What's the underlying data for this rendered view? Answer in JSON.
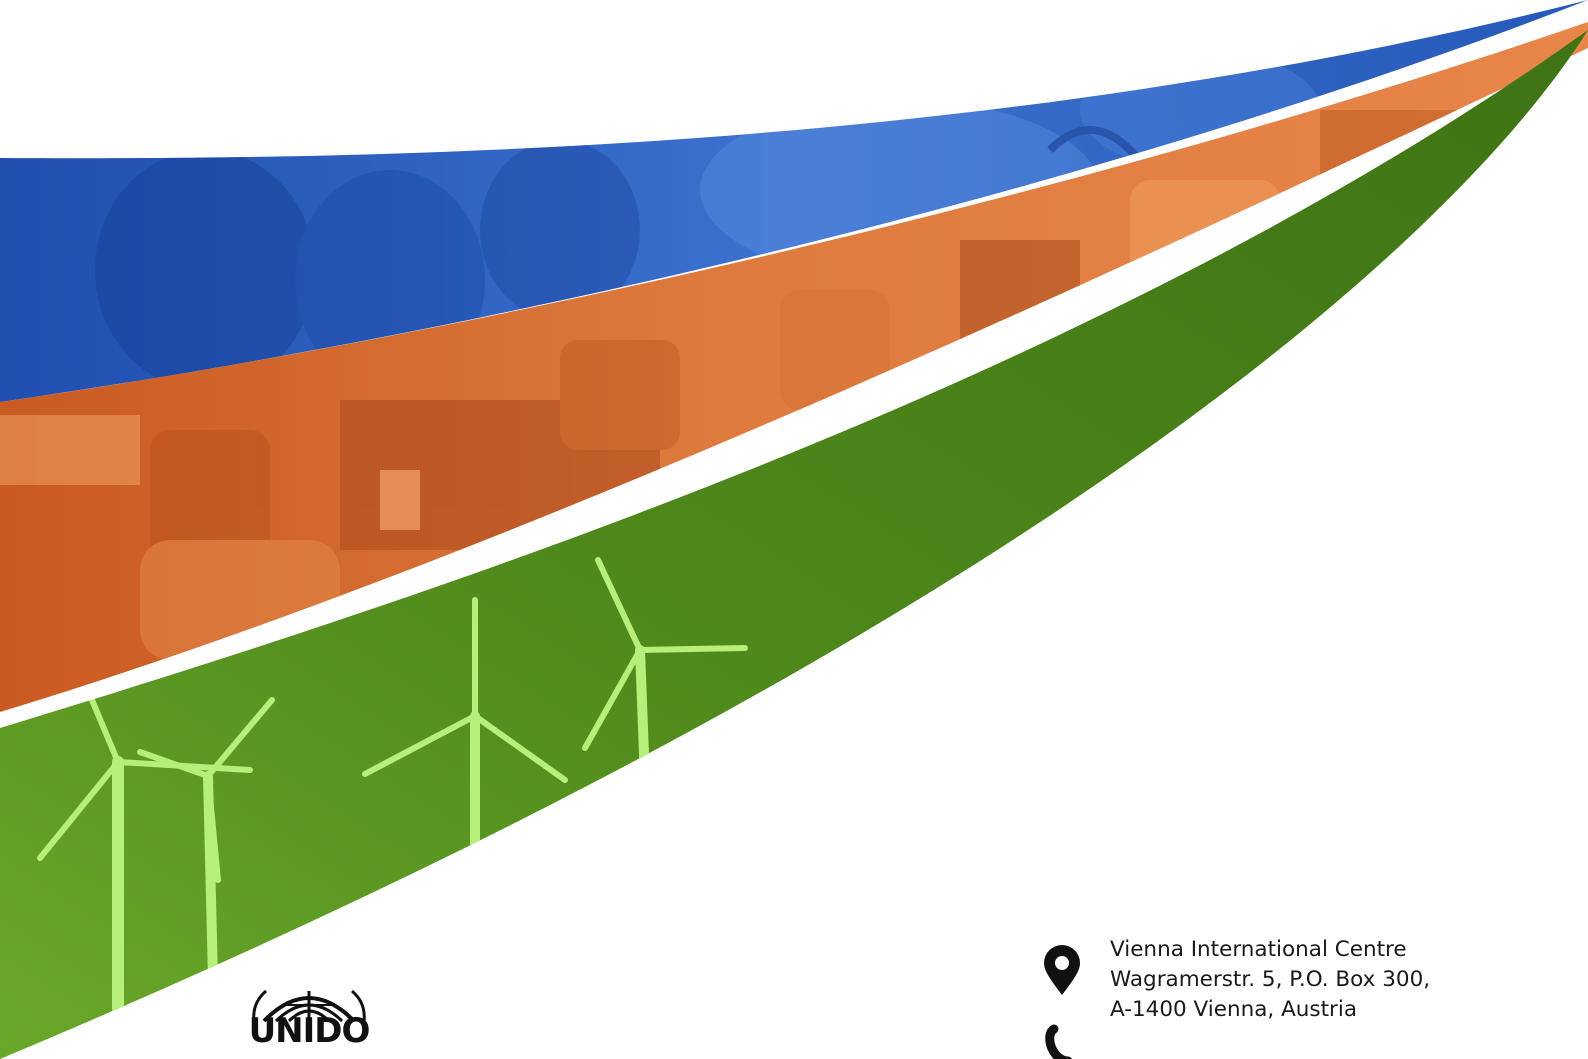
{
  "brand": {
    "logo_text": "UNIDO",
    "colors": {
      "blue": "#2d63c7",
      "orange": "#d96a2e",
      "green": "#4e8a18"
    }
  },
  "contact": {
    "address_lines": [
      "Vienna International Centre",
      "Wagramerstr. 5,  P.O. Box 300,",
      "A-1400 Vienna, Austria"
    ],
    "address_icon": "location-pin-icon",
    "phone_icon": "phone-icon"
  }
}
